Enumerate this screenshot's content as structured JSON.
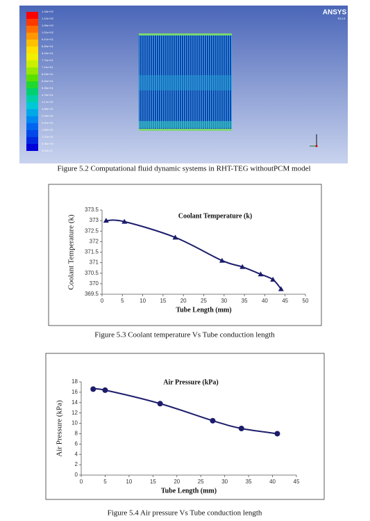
{
  "figures": [
    {
      "caption": "Figure 5.2 Computational fluid dynamic systems in RHT-TEG withoutPCM model",
      "logo": "ANSYS",
      "version": "R14.5",
      "legend_labels": [
        "1.18e+02",
        "1.12e+02",
        "1.06e+02",
        "1.01e+02",
        "9.47e+01",
        "8.89e+01",
        "8.29e+01",
        "7.70e+01",
        "7.11e+01",
        "6.53e+01",
        "5.94e+01",
        "5.35e+01",
        "4.76e+01",
        "4.17e+01",
        "3.58e+01",
        "2.99e+01",
        "2.40e+01",
        "1.82e+01",
        "1.22e+01",
        "6.35e+00",
        "5.02e-01"
      ]
    },
    {
      "caption": "Figure 5.3 Coolant temperature Vs Tube conduction length"
    },
    {
      "caption": "Figure 5.4 Air pressure Vs Tube conduction length"
    }
  ],
  "chart_data": [
    {
      "type": "line",
      "title": "Coolant Temperature (k)",
      "xlabel": "Tube Length (mm)",
      "ylabel": "Coolant Temperature (k)",
      "x": [
        1,
        5.5,
        18,
        29.5,
        34.5,
        39,
        42,
        44
      ],
      "values": [
        373,
        372.95,
        372.2,
        371.1,
        370.8,
        370.45,
        370.2,
        369.75
      ],
      "color": "#1c1c6b",
      "marker": "triangle",
      "xlim": [
        0,
        50
      ],
      "xticks": [
        0,
        5,
        10,
        15,
        20,
        25,
        30,
        35,
        40,
        45,
        50
      ],
      "ylim": [
        369.5,
        373.5
      ],
      "yticks": [
        369.5,
        370,
        370.5,
        371,
        371.5,
        372,
        372.5,
        373,
        373.5
      ]
    },
    {
      "type": "line",
      "title": "Air Pressure (kPa)",
      "xlabel": "Tube Length (mm)",
      "ylabel": "Air Pressure (kPa)",
      "x": [
        2.5,
        5,
        16.5,
        27.5,
        33.5,
        41
      ],
      "values": [
        16.6,
        16.4,
        13.8,
        10.5,
        9,
        8
      ],
      "color": "#1c1c6b",
      "marker": "circle",
      "xlim": [
        0,
        45
      ],
      "xticks": [
        0,
        5,
        10,
        15,
        20,
        25,
        30,
        35,
        40,
        45
      ],
      "ylim": [
        0,
        18
      ],
      "yticks": [
        0,
        2,
        4,
        6,
        8,
        10,
        12,
        14,
        16,
        18
      ]
    }
  ]
}
